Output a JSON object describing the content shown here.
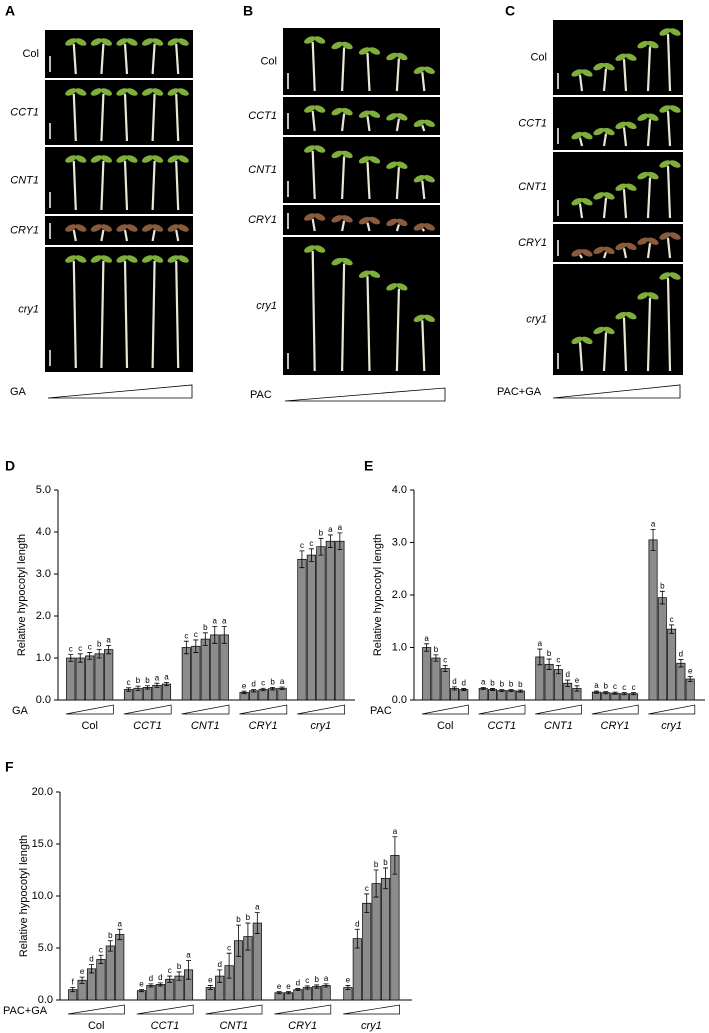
{
  "photo_panels": [
    {
      "panel_label": "A",
      "rows": [
        "Col",
        "CCT1",
        "CNT1",
        "CRY1",
        "cry1"
      ],
      "treatment": "GA"
    },
    {
      "panel_label": "B",
      "rows": [
        "Col",
        "CCT1",
        "CNT1",
        "CRY1",
        "cry1"
      ],
      "treatment": "PAC"
    },
    {
      "panel_label": "C",
      "rows": [
        "Col",
        "CCT1",
        "CNT1",
        "CRY1",
        "cry1"
      ],
      "treatment": "PAC+GA"
    }
  ],
  "chart_data": [
    {
      "type": "bar",
      "panel_label": "D",
      "ylabel": "Relative  hypocotyl length",
      "treatment": "GA",
      "ylim": [
        0,
        5
      ],
      "yticks": [
        {
          "value": 0,
          "label": "0.0"
        },
        {
          "value": 1,
          "label": "1.0"
        },
        {
          "value": 2,
          "label": "2.0"
        },
        {
          "value": 3,
          "label": "3.0"
        },
        {
          "value": 4,
          "label": "4.0"
        },
        {
          "value": 5,
          "label": "5.0"
        }
      ],
      "groups": [
        {
          "name": "Col",
          "values": [
            1.0,
            1.0,
            1.05,
            1.1,
            1.2
          ],
          "errors": [
            0.08,
            0.1,
            0.08,
            0.1,
            0.1
          ],
          "letters": [
            "c",
            "c",
            "c",
            "b",
            "a"
          ]
        },
        {
          "name": "CCT1",
          "values": [
            0.25,
            0.28,
            0.3,
            0.35,
            0.38
          ],
          "errors": [
            0.04,
            0.05,
            0.04,
            0.05,
            0.04
          ],
          "letters": [
            "c",
            "b",
            "b",
            "a",
            "a"
          ]
        },
        {
          "name": "CNT1",
          "values": [
            1.25,
            1.28,
            1.45,
            1.55,
            1.55
          ],
          "errors": [
            0.15,
            0.15,
            0.15,
            0.2,
            0.2
          ],
          "letters": [
            "c",
            "c",
            "b",
            "a",
            "a"
          ]
        },
        {
          "name": "CRY1",
          "values": [
            0.18,
            0.22,
            0.25,
            0.27,
            0.28
          ],
          "errors": [
            0.03,
            0.03,
            0.03,
            0.03,
            0.03
          ],
          "letters": [
            "e",
            "d",
            "c",
            "b",
            "a"
          ]
        },
        {
          "name": "cry1",
          "values": [
            3.35,
            3.45,
            3.65,
            3.78,
            3.78
          ],
          "errors": [
            0.2,
            0.15,
            0.2,
            0.15,
            0.2
          ],
          "letters": [
            "c",
            "c",
            "b",
            "a",
            "a"
          ]
        }
      ]
    },
    {
      "type": "bar",
      "panel_label": "E",
      "ylabel": "Relative  hypocotyl length",
      "treatment": "PAC",
      "ylim": [
        0,
        4
      ],
      "yticks": [
        {
          "value": 0,
          "label": "0.0"
        },
        {
          "value": 1,
          "label": "1.0"
        },
        {
          "value": 2,
          "label": "2.0"
        },
        {
          "value": 3,
          "label": "3.0"
        },
        {
          "value": 4,
          "label": "4.0"
        }
      ],
      "groups": [
        {
          "name": "Col",
          "values": [
            1.0,
            0.8,
            0.6,
            0.22,
            0.2
          ],
          "errors": [
            0.07,
            0.06,
            0.06,
            0.03,
            0.02
          ],
          "letters": [
            "a",
            "b",
            "c",
            "d",
            "d"
          ]
        },
        {
          "name": "CCT1",
          "values": [
            0.22,
            0.2,
            0.18,
            0.18,
            0.17
          ],
          "errors": [
            0.02,
            0.02,
            0.02,
            0.02,
            0.02
          ],
          "letters": [
            "a",
            "b",
            "b",
            "b",
            "b"
          ]
        },
        {
          "name": "CNT1",
          "values": [
            0.82,
            0.68,
            0.58,
            0.32,
            0.22
          ],
          "errors": [
            0.15,
            0.1,
            0.08,
            0.06,
            0.05
          ],
          "letters": [
            "a",
            "b",
            "c",
            "d",
            "e"
          ]
        },
        {
          "name": "CRY1",
          "values": [
            0.15,
            0.14,
            0.13,
            0.12,
            0.12
          ],
          "errors": [
            0.02,
            0.02,
            0.02,
            0.02,
            0.02
          ],
          "letters": [
            "a",
            "b",
            "c",
            "c",
            "c"
          ]
        },
        {
          "name": "cry1",
          "values": [
            3.05,
            1.95,
            1.35,
            0.7,
            0.4
          ],
          "errors": [
            0.2,
            0.12,
            0.08,
            0.07,
            0.05
          ],
          "letters": [
            "a",
            "b",
            "c",
            "d",
            "e"
          ]
        }
      ]
    },
    {
      "type": "bar",
      "panel_label": "F",
      "ylabel": "Relative hypocotyl length",
      "treatment": "PAC+GA",
      "ylim": [
        0,
        20
      ],
      "yticks": [
        {
          "value": 0,
          "label": "0.0"
        },
        {
          "value": 5,
          "label": "5.0"
        },
        {
          "value": 10,
          "label": "10.0"
        },
        {
          "value": 15,
          "label": "15.0"
        },
        {
          "value": 20,
          "label": "20.0"
        }
      ],
      "groups": [
        {
          "name": "Col",
          "values": [
            1.0,
            1.9,
            3.0,
            3.9,
            5.2,
            6.3
          ],
          "errors": [
            0.2,
            0.3,
            0.4,
            0.4,
            0.5,
            0.5
          ],
          "letters": [
            "f",
            "e",
            "d",
            "c",
            "b",
            "a"
          ]
        },
        {
          "name": "CCT1",
          "values": [
            0.9,
            1.4,
            1.5,
            2.0,
            2.3,
            2.9
          ],
          "errors": [
            0.1,
            0.15,
            0.15,
            0.3,
            0.4,
            0.9
          ],
          "letters": [
            "e",
            "d",
            "d",
            "c",
            "b",
            "a"
          ]
        },
        {
          "name": "CNT1",
          "values": [
            1.2,
            2.3,
            3.3,
            5.7,
            6.1,
            7.4
          ],
          "errors": [
            0.2,
            0.6,
            1.2,
            1.5,
            1.3,
            1.0
          ],
          "letters": [
            "e",
            "d",
            "c",
            "b",
            "b",
            "a"
          ]
        },
        {
          "name": "CRY1",
          "values": [
            0.7,
            0.7,
            1.0,
            1.2,
            1.3,
            1.4
          ],
          "errors": [
            0.1,
            0.1,
            0.1,
            0.15,
            0.15,
            0.15
          ],
          "letters": [
            "e",
            "e",
            "d",
            "c",
            "b",
            "a"
          ]
        },
        {
          "name": "cry1",
          "values": [
            1.2,
            5.9,
            9.3,
            11.2,
            11.7,
            13.9
          ],
          "errors": [
            0.2,
            0.9,
            0.9,
            1.3,
            1.0,
            1.8
          ],
          "letters": [
            "e",
            "d",
            "c",
            "b",
            "b",
            "a"
          ]
        }
      ]
    }
  ]
}
